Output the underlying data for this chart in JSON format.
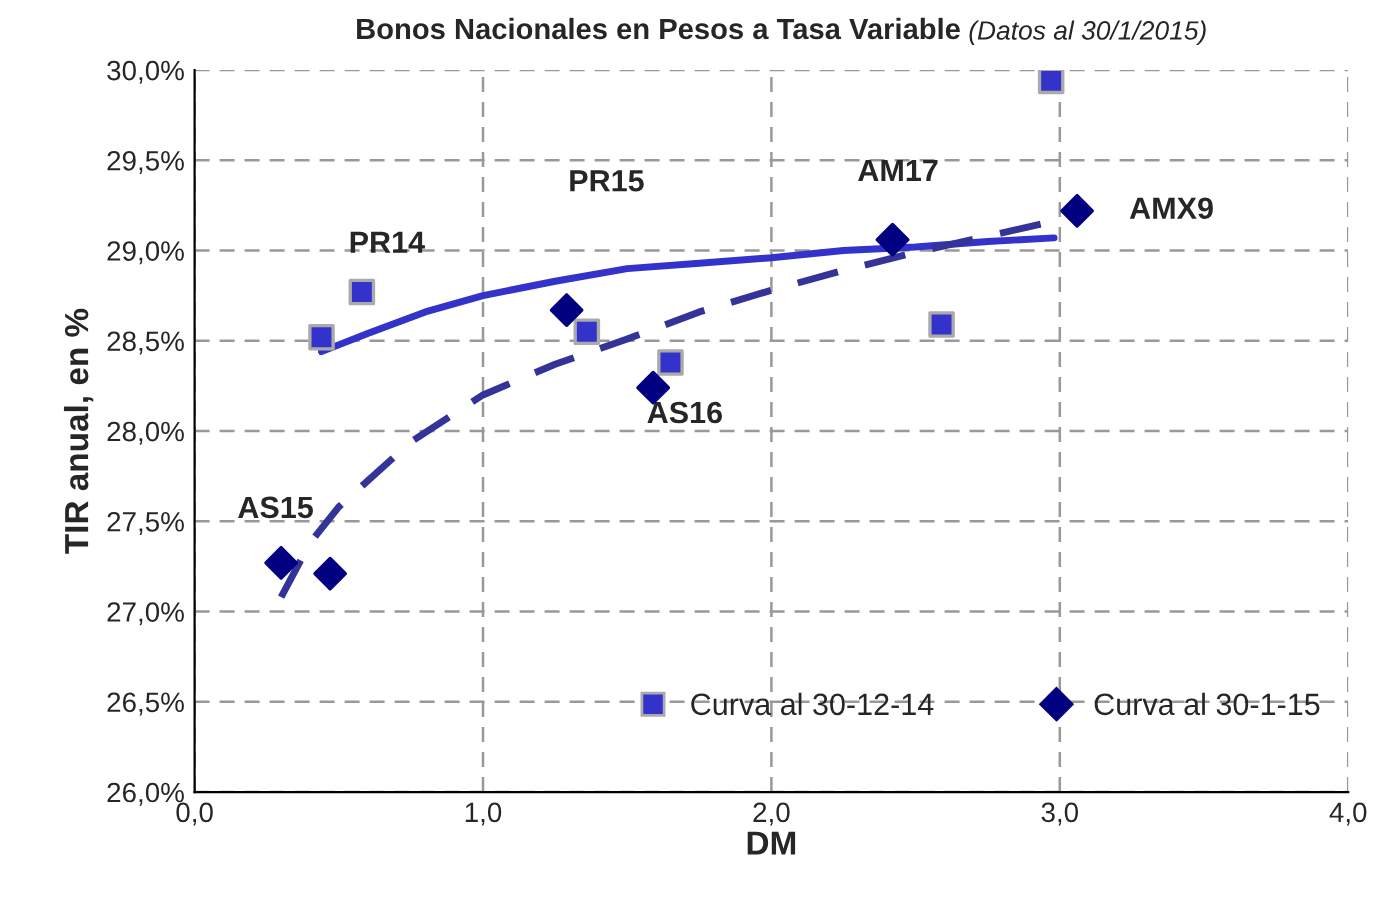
{
  "chart_data": {
    "type": "scatter",
    "title": "Bonos Nacionales en Pesos a Tasa Variable",
    "subtitle": "(Datos al 30/1/2015)",
    "xlabel": "DM",
    "ylabel": "TIR anual, en %",
    "series": [
      {
        "name": "Curva al 30-12-14",
        "marker": "square",
        "color": "#3333cc",
        "x": [
          0.44,
          0.58,
          1.36,
          1.65,
          2.59,
          2.97
        ],
        "values": [
          28.52,
          28.77,
          28.55,
          28.38,
          28.59,
          29.94
        ]
      },
      {
        "name": "Curva al 30-1-15",
        "marker": "diamond",
        "color": "#000080",
        "x": [
          0.3,
          0.47,
          1.29,
          1.59,
          2.42,
          3.06
        ],
        "values": [
          27.27,
          27.21,
          28.67,
          28.24,
          29.06,
          29.22
        ]
      },
      {
        "type": "line",
        "line_style": "solid",
        "color": "#3333cc",
        "x": [
          0.44,
          0.6,
          0.8,
          1.0,
          1.25,
          1.5,
          1.75,
          2.0,
          2.25,
          2.5,
          2.75,
          2.98
        ],
        "values": [
          28.44,
          28.54,
          28.66,
          28.75,
          28.83,
          28.9,
          28.93,
          28.96,
          29.0,
          29.02,
          29.05,
          29.07
        ]
      },
      {
        "type": "line",
        "line_style": "dashed",
        "color": "#333399",
        "x": [
          0.3,
          0.4,
          0.5,
          0.75,
          1.0,
          1.25,
          1.5,
          1.75,
          2.0,
          2.25,
          2.5,
          2.75,
          3.0
        ],
        "values": [
          27.08,
          27.38,
          27.58,
          27.94,
          28.2,
          28.37,
          28.51,
          28.66,
          28.78,
          28.89,
          28.99,
          29.08,
          29.17
        ]
      }
    ],
    "annotations": [
      {
        "text": "PR14",
        "x": 0.58,
        "y": 28.77
      },
      "PR15",
      "AS16",
      {
        "text": "AM17",
        "x": 2.42,
        "y": 29.06
      },
      {
        "text": "AMX9",
        "x": 3.06,
        "y": 29.22
      },
      {
        "text": "AS15",
        "x": 0.3,
        "y": 27.27
      }
    ],
    "xlim": [
      0,
      4
    ],
    "xticks": [
      {
        "value": 0,
        "label": "0,0"
      },
      {
        "value": 1,
        "label": "1,0"
      },
      {
        "value": 2,
        "label": "2,0"
      },
      {
        "value": 3,
        "label": "3,0"
      },
      {
        "value": 4,
        "label": "4,0"
      }
    ],
    "ylim": [
      26,
      30
    ],
    "yticks": [
      {
        "value": 26,
        "label": "26,0%"
      },
      {
        "value": 26.5,
        "label": "26,5%"
      },
      {
        "value": 27,
        "label": "27,0%"
      },
      {
        "value": 27.5,
        "label": "27,5%"
      },
      {
        "value": 28,
        "label": "28,0%"
      },
      {
        "value": 28.5,
        "label": "28,5%"
      },
      {
        "value": 29,
        "label": "29,0%"
      },
      {
        "value": 29.5,
        "label": "29,5%"
      },
      {
        "value": 30,
        "label": "30,0%"
      }
    ],
    "grid": true,
    "legend": "bottom right"
  }
}
